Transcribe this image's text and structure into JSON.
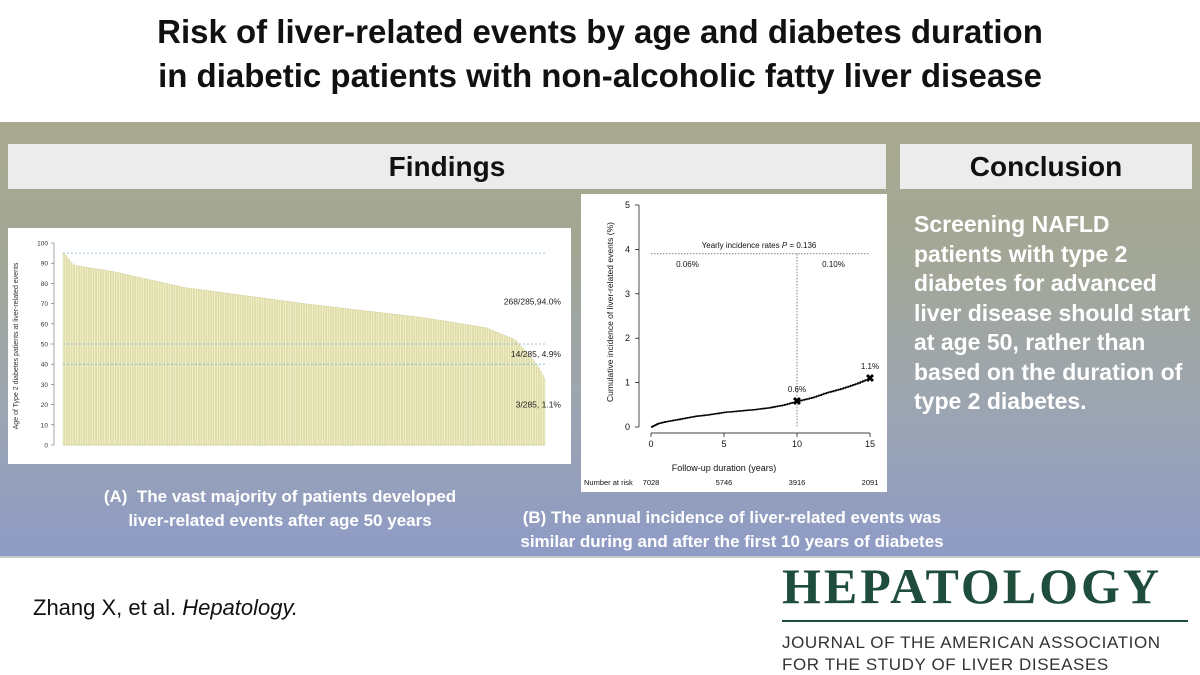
{
  "title_lines": [
    "Risk of liver-related events by age and diabetes duration",
    "in diabetic patients with non-alcoholic fatty liver disease"
  ],
  "findings_header": "Findings",
  "conclusion_header": "Conclusion",
  "conclusion_text": "Screening NAFLD patients with type 2 diabetes for advanced liver disease should start at age 50, rather than based on the duration of type 2 diabetes.",
  "caption_a": {
    "label": "(A)",
    "text_line1": "The vast majority of patients developed",
    "text_line2": "liver-related events after age 50 years"
  },
  "caption_b": {
    "line1": "(B) The annual incidence of liver-related events was",
    "line2": "similar during and after the first 10 years of diabetes"
  },
  "citation": {
    "authors": "Zhang X, et al. ",
    "journal": "Hepatology."
  },
  "logo": {
    "word": "HEPATOLOGY",
    "sub_line1": "JOURNAL OF THE AMERICAN ASSOCIATION",
    "sub_line2": "FOR THE STUDY OF LIVER DISEASES"
  },
  "colors": {
    "bar_fill": "#efeec4",
    "bar_stroke": "#c9c68a",
    "ref_line": "#7fb3d5",
    "curve": "#000000",
    "logo_green": "#1f4d3c"
  },
  "chart_data": [
    {
      "type": "bar",
      "ylabel": "Age of Type 2 diabetes patients at liver-related events",
      "ylim": [
        0,
        100
      ],
      "yticks": [
        0,
        10,
        20,
        30,
        40,
        50,
        60,
        70,
        80,
        90,
        100
      ],
      "n_patients": 285,
      "description_of_values": "ages sorted descending",
      "age_profile": {
        "max": 95,
        "p0_02": 89,
        "p0_1": 86,
        "p0_25": 78,
        "p0_5": 70,
        "p0_75": 63,
        "p0_88": 58,
        "p0_94": 52,
        "p0_97": 44,
        "p0_99": 38,
        "min": 33
      },
      "reference_lines": [
        95,
        50,
        40
      ],
      "annotations": [
        {
          "text": "268/285,94.0%",
          "y": 71
        },
        {
          "text": "14/285, 4.9%",
          "y": 45
        },
        {
          "text": "3/285, 1.1%",
          "y": 20
        }
      ]
    },
    {
      "type": "line",
      "xlabel": "Follow-up duration (years)",
      "ylabel": "Cumulative incidence of liver-related events (%)",
      "xlim": [
        0,
        15
      ],
      "ylim": [
        0,
        5
      ],
      "xticks": [
        0,
        5,
        10,
        15
      ],
      "yticks": [
        0,
        1,
        2,
        3,
        4,
        5
      ],
      "series": [
        {
          "x": [
            0,
            0.5,
            1,
            2,
            3,
            4,
            5,
            6,
            7,
            8,
            9,
            10,
            11,
            12,
            13,
            14,
            15
          ],
          "y": [
            0,
            0.08,
            0.12,
            0.18,
            0.24,
            0.28,
            0.33,
            0.36,
            0.39,
            0.43,
            0.49,
            0.58,
            0.66,
            0.77,
            0.86,
            0.97,
            1.1
          ]
        }
      ],
      "markers": [
        {
          "x": 10,
          "y": 0.58,
          "label": "0.6%"
        },
        {
          "x": 15,
          "y": 1.1,
          "label": "1.1%"
        }
      ],
      "annotation_title_prefix": "Yearly incidence rates ",
      "annotation_title_p": "P",
      "annotation_title_suffix": " = 0.136",
      "rate_labels": [
        {
          "text": "0.06%",
          "x": 2.5
        },
        {
          "text": "0.10%",
          "x": 12.5
        }
      ],
      "rate_line_y": 3.9,
      "split_x": 10,
      "number_at_risk_label": "Number at risk",
      "number_at_risk": [
        {
          "x": 0,
          "value": "7028"
        },
        {
          "x": 5,
          "value": "5746"
        },
        {
          "x": 10,
          "value": "3916"
        },
        {
          "x": 15,
          "value": "2091"
        }
      ]
    }
  ]
}
